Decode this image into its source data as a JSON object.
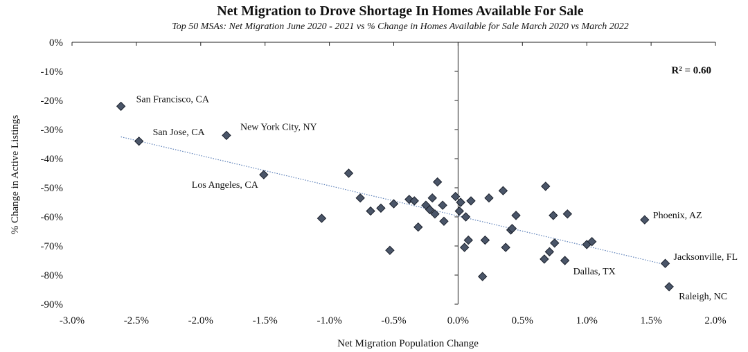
{
  "chart_data": {
    "type": "scatter",
    "title": "Net Migration to Drove Shortage In Homes Available For Sale",
    "subtitle": "Top 50 MSAs: Net Migration June 2020 - 2021 vs % Change in Homes Available for Sale March 2020 vs March 2022",
    "xlabel": "Net Migration Population Change",
    "ylabel": "% Change in Active Listings",
    "xlim": [
      -3.0,
      2.0
    ],
    "ylim": [
      -90,
      0
    ],
    "x_ticks": [
      -3.0,
      -2.5,
      -2.0,
      -1.5,
      -1.0,
      -0.5,
      0.0,
      0.5,
      1.0,
      1.5,
      2.0
    ],
    "x_tick_labels": [
      "-3.0%",
      "-2.5%",
      "-2.0%",
      "-1.5%",
      "-1.0%",
      "-0.5%",
      "0.0%",
      "0.5%",
      "1.0%",
      "1.5%",
      "2.0%"
    ],
    "y_ticks": [
      0,
      -10,
      -20,
      -30,
      -40,
      -50,
      -60,
      -70,
      -80,
      -90
    ],
    "y_tick_labels": [
      "0%",
      "-10%",
      "-20%",
      "-30%",
      "-40%",
      "-50%",
      "-60%",
      "-70%",
      "-80%",
      "-90%"
    ],
    "r2_label": "R² = 0.60",
    "trendline": {
      "x": [
        -2.62,
        1.62
      ],
      "y": [
        -32.5,
        -76.5
      ]
    },
    "marker_color": "#4a5568",
    "trend_color": "#5b7fb8",
    "labeled_points": [
      {
        "name": "San Francisco, CA",
        "x": -2.62,
        "y": -22
      },
      {
        "name": "San Jose, CA",
        "x": -2.48,
        "y": -34
      },
      {
        "name": "New York City, NY",
        "x": -1.8,
        "y": -32
      },
      {
        "name": "Los Angeles, CA",
        "x": -1.51,
        "y": -45.5
      },
      {
        "name": "Phoenix, AZ",
        "x": 1.45,
        "y": -61
      },
      {
        "name": "Jacksonville, FL",
        "x": 1.61,
        "y": -76
      },
      {
        "name": "Dallas, TX",
        "x": 0.83,
        "y": -75
      },
      {
        "name": "Raleigh, NC",
        "x": 1.64,
        "y": -84
      }
    ],
    "points": [
      {
        "x": -1.06,
        "y": -60.5
      },
      {
        "x": -0.85,
        "y": -45
      },
      {
        "x": -0.76,
        "y": -53.5
      },
      {
        "x": -0.68,
        "y": -58
      },
      {
        "x": -0.6,
        "y": -57
      },
      {
        "x": -0.53,
        "y": -71.5
      },
      {
        "x": -0.5,
        "y": -55.5
      },
      {
        "x": -0.38,
        "y": -54
      },
      {
        "x": -0.34,
        "y": -54.5
      },
      {
        "x": -0.31,
        "y": -63.5
      },
      {
        "x": -0.25,
        "y": -56
      },
      {
        "x": -0.22,
        "y": -57.5
      },
      {
        "x": -0.2,
        "y": -53.5
      },
      {
        "x": -0.18,
        "y": -59
      },
      {
        "x": -0.16,
        "y": -48
      },
      {
        "x": -0.12,
        "y": -56
      },
      {
        "x": -0.11,
        "y": -61.5
      },
      {
        "x": -0.02,
        "y": -53
      },
      {
        "x": 0.01,
        "y": -58
      },
      {
        "x": 0.02,
        "y": -55
      },
      {
        "x": 0.05,
        "y": -70.5
      },
      {
        "x": 0.06,
        "y": -60
      },
      {
        "x": 0.08,
        "y": -68
      },
      {
        "x": 0.1,
        "y": -54.5
      },
      {
        "x": 0.19,
        "y": -80.5
      },
      {
        "x": 0.21,
        "y": -68
      },
      {
        "x": 0.24,
        "y": -53.5
      },
      {
        "x": 0.35,
        "y": -51
      },
      {
        "x": 0.37,
        "y": -70.5
      },
      {
        "x": 0.41,
        "y": -64.5
      },
      {
        "x": 0.42,
        "y": -64
      },
      {
        "x": 0.45,
        "y": -59.5
      },
      {
        "x": 0.67,
        "y": -74.5
      },
      {
        "x": 0.68,
        "y": -49.5
      },
      {
        "x": 0.71,
        "y": -72
      },
      {
        "x": 0.74,
        "y": -59.5
      },
      {
        "x": 0.75,
        "y": -69
      },
      {
        "x": 0.85,
        "y": -59
      },
      {
        "x": 1.0,
        "y": -69.5
      },
      {
        "x": 1.04,
        "y": -68.5
      }
    ]
  }
}
